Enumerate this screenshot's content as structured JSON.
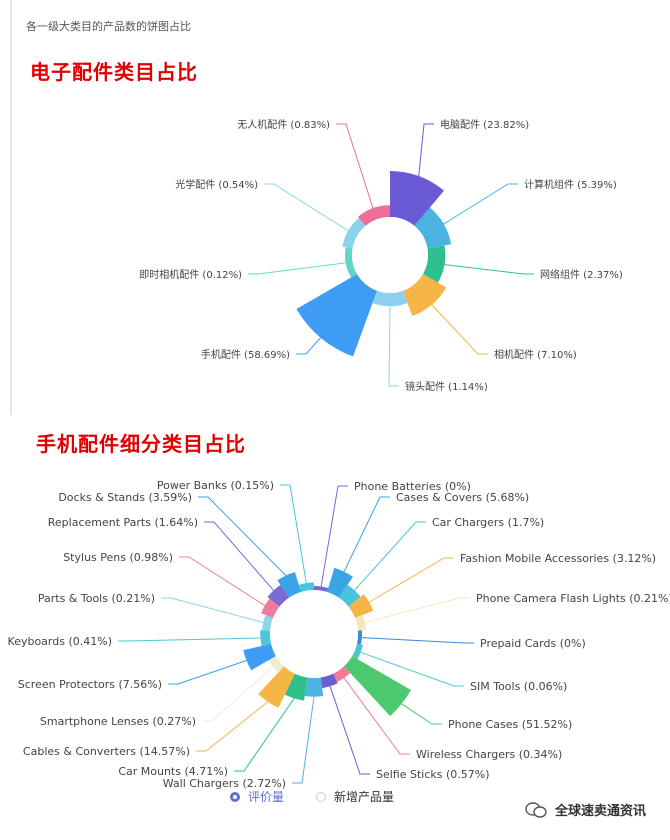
{
  "header": {
    "subtitle": "各一级大类目的产品数的饼图占比",
    "title1": "电子配件类目占比",
    "title2": "手机配件细分类目占比"
  },
  "chart_data": [
    {
      "type": "pie",
      "rose": true,
      "slices": [
        {
          "label": "电脑配件 (23.82%)",
          "value": 23.82,
          "color": "#6b5ad6"
        },
        {
          "label": "计算机组件 (5.39%)",
          "value": 5.39,
          "color": "#4bb3e0"
        },
        {
          "label": "网络组件 (2.37%)",
          "value": 2.37,
          "color": "#2fc08f"
        },
        {
          "label": "相机配件 (7.10%)",
          "value": 7.1,
          "color": "#f5b547"
        },
        {
          "label": "镜头配件 (1.14%)",
          "value": 1.14,
          "color": "#8fd0f0"
        },
        {
          "label": "手机配件 (58.69%)",
          "value": 58.69,
          "color": "#3e9cf5"
        },
        {
          "label": "即时相机配件 (0.12%)",
          "value": 0.12,
          "color": "#5fd6c8"
        },
        {
          "label": "光学配件 (0.54%)",
          "value": 0.54,
          "color": "#8cd3ea"
        },
        {
          "label": "无人机配件 (0.83%)",
          "value": 0.83,
          "color": "#f06c9a"
        }
      ]
    },
    {
      "type": "pie",
      "rose": true,
      "slices": [
        {
          "label": "Phone Batteries (0%)",
          "value": 0,
          "color": "#7268d8"
        },
        {
          "label": "Cases & Covers (5.68%)",
          "value": 5.68,
          "color": "#3aa5e6"
        },
        {
          "label": "Car Chargers (1.7%)",
          "value": 1.7,
          "color": "#49c3de"
        },
        {
          "label": "Fashion Mobile Accessories (3.12%)",
          "value": 3.12,
          "color": "#f5b547"
        },
        {
          "label": "Phone Camera Flash Lights (0.21%)",
          "value": 0.21,
          "color": "#f7e7b8"
        },
        {
          "label": "Prepaid Cards (0%)",
          "value": 0,
          "color": "#3e88d8"
        },
        {
          "label": "SIM Tools (0.06%)",
          "value": 0.06,
          "color": "#4bc7d6"
        },
        {
          "label": "Phone Cases (51.52%)",
          "value": 51.52,
          "color": "#4cc96e"
        },
        {
          "label": "Wireless Chargers (0.34%)",
          "value": 0.34,
          "color": "#f07a9a"
        },
        {
          "label": "Selfie Sticks (0.57%)",
          "value": 0.57,
          "color": "#6a5fd0"
        },
        {
          "label": "Wall Chargers (2.72%)",
          "value": 2.72,
          "color": "#4db3e3"
        },
        {
          "label": "Car Mounts (4.71%)",
          "value": 4.71,
          "color": "#2fbf8a"
        },
        {
          "label": "Cables & Converters (14.57%)",
          "value": 14.57,
          "color": "#f5b547"
        },
        {
          "label": "Smartphone Lenses (0.27%)",
          "value": 0.27,
          "color": "#f3ead0"
        },
        {
          "label": "Screen Protectors (7.56%)",
          "value": 7.56,
          "color": "#3e9cf5"
        },
        {
          "label": "Keyboards (0.41%)",
          "value": 0.41,
          "color": "#4ac7d6"
        },
        {
          "label": "Parts & Tools (0.21%)",
          "value": 0.21,
          "color": "#8bd6ea"
        },
        {
          "label": "Stylus Pens (0.98%)",
          "value": 0.98,
          "color": "#f07a9a"
        },
        {
          "label": "Replacement Parts (1.64%)",
          "value": 1.64,
          "color": "#7a6ad6"
        },
        {
          "label": "Docks & Stands (3.59%)",
          "value": 3.59,
          "color": "#3aa5e6"
        },
        {
          "label": "Power Banks (0.15%)",
          "value": 0.15,
          "color": "#49c3de"
        }
      ]
    }
  ],
  "legend": {
    "items": [
      {
        "label": "评价量",
        "active": true
      },
      {
        "label": "新增产品量",
        "active": false
      }
    ]
  },
  "watermark": {
    "text": "全球速卖通资讯"
  }
}
